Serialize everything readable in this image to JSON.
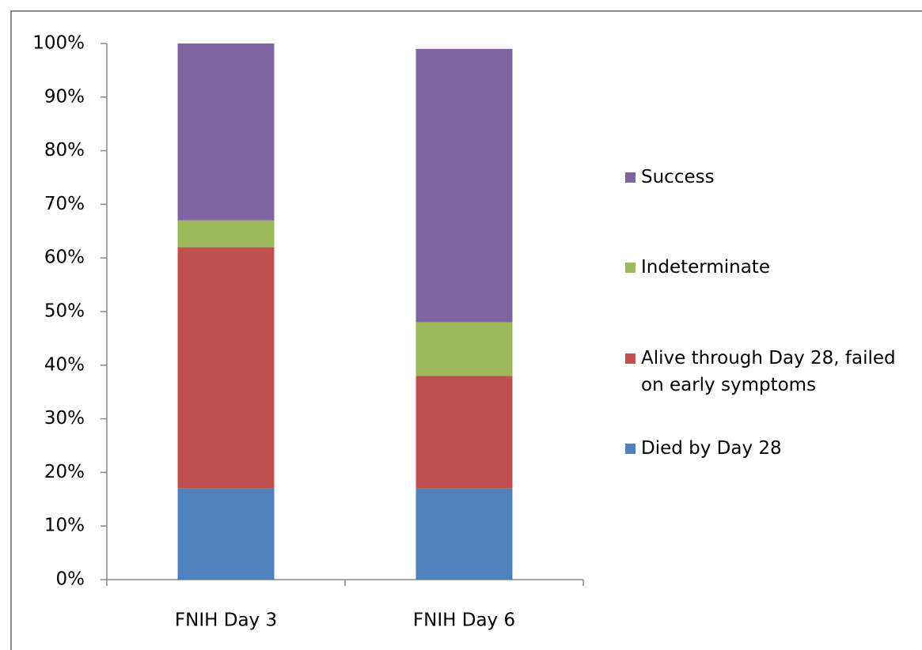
{
  "chart_data": {
    "type": "stacked_bar",
    "categories": [
      "FNIH Day 3",
      "FNIH Day 6"
    ],
    "series": [
      {
        "name": "Died by Day 28",
        "color": "#4f81bd",
        "values": [
          17,
          17
        ]
      },
      {
        "name": "Alive through Day 28, failed on early symptoms",
        "color": "#c0504d",
        "values": [
          45,
          21
        ]
      },
      {
        "name": "Indeterminate",
        "color": "#9bbb59",
        "values": [
          5,
          10
        ]
      },
      {
        "name": "Success",
        "color": "#8064a2",
        "values": [
          33,
          51
        ]
      }
    ],
    "ylim": [
      0,
      100
    ],
    "yticks": [
      {
        "value": 0,
        "label": "0%"
      },
      {
        "value": 10,
        "label": "10%"
      },
      {
        "value": 20,
        "label": "20%"
      },
      {
        "value": 30,
        "label": "30%"
      },
      {
        "value": 40,
        "label": "40%"
      },
      {
        "value": 50,
        "label": "50%"
      },
      {
        "value": 60,
        "label": "60%"
      },
      {
        "value": 70,
        "label": "70%"
      },
      {
        "value": 80,
        "label": "80%"
      },
      {
        "value": 90,
        "label": "90%"
      },
      {
        "value": 100,
        "label": "100%"
      }
    ],
    "legend": "right"
  }
}
